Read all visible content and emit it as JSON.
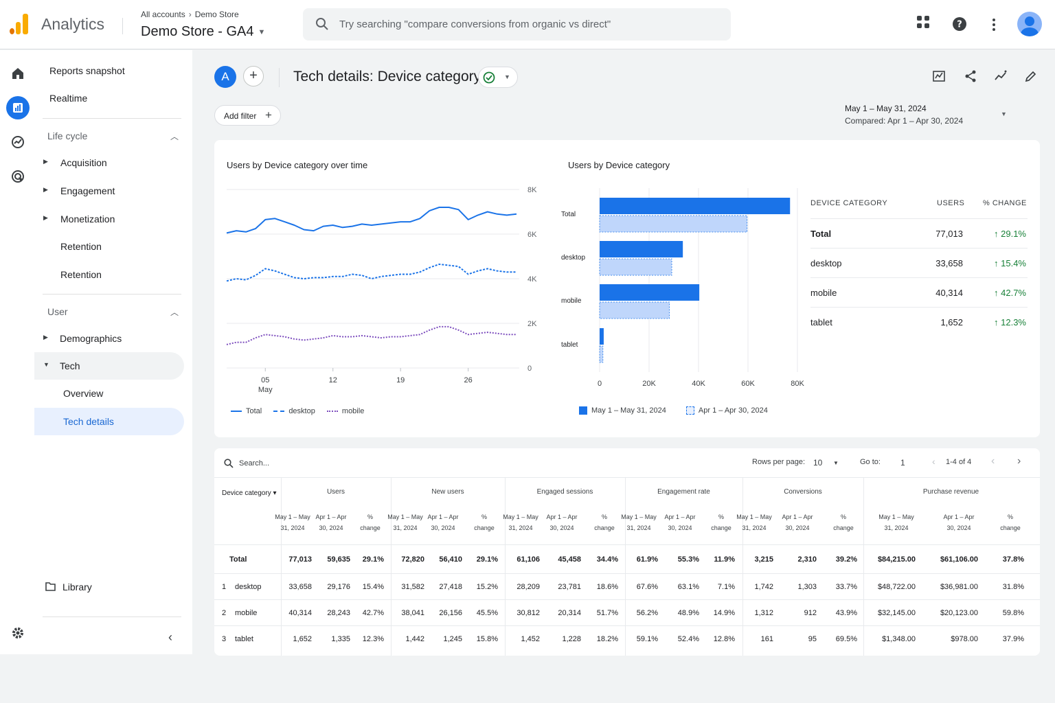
{
  "header": {
    "app_name": "Analytics",
    "breadcrumb_all": "All accounts",
    "breadcrumb_store": "Demo Store",
    "property": "Demo Store - GA4",
    "search_placeholder": "Try searching \"compare conversions from organic vs direct\""
  },
  "sidebar": {
    "reports_snapshot": "Reports snapshot",
    "realtime": "Realtime",
    "lifecycle": "Life cycle",
    "acquisition": "Acquisition",
    "engagement": "Engagement",
    "monetization": "Monetization",
    "retention1": "Retention",
    "retention2": "Retention",
    "user": "User",
    "demographics": "Demographics",
    "tech": "Tech",
    "overview": "Overview",
    "tech_details": "Tech details",
    "library": "Library"
  },
  "page": {
    "comparison_avatar": "A",
    "title": "Tech details: Device category",
    "add_filter": "Add filter",
    "date_range": "May 1 – May 31, 2024",
    "compared": "Compared: Apr 1 – Apr 30, 2024"
  },
  "line_chart": {
    "title": "Users by Device category over time",
    "x_ticks": [
      "05",
      "12",
      "19",
      "26"
    ],
    "x_sub": "May",
    "y_ticks": [
      "8K",
      "6K",
      "4K",
      "2K",
      "0"
    ],
    "legend": [
      "Total",
      "desktop",
      "mobile"
    ]
  },
  "bar_chart": {
    "title": "Users by Device category",
    "categories": [
      "Total",
      "desktop",
      "mobile",
      "tablet"
    ],
    "x_ticks": [
      "0",
      "20K",
      "40K",
      "60K",
      "80K"
    ],
    "legend_current": "May 1 – May 31, 2024",
    "legend_previous": "Apr 1 – Apr 30, 2024"
  },
  "summary": {
    "headers": [
      "DEVICE CATEGORY",
      "USERS",
      "% CHANGE"
    ],
    "rows": [
      {
        "name": "Total",
        "users": "77,013",
        "change": "29.1%"
      },
      {
        "name": "desktop",
        "users": "33,658",
        "change": "15.4%"
      },
      {
        "name": "mobile",
        "users": "40,314",
        "change": "42.7%"
      },
      {
        "name": "tablet",
        "users": "1,652",
        "change": "12.3%"
      }
    ]
  },
  "table": {
    "search_placeholder": "Search...",
    "rows_per_page_label": "Rows per page:",
    "rows_per_page": "10",
    "goto_label": "Go to:",
    "goto": "1",
    "range": "1-4 of 4",
    "dim_header": "Device category",
    "groups": [
      "Users",
      "New users",
      "Engaged sessions",
      "Engagement rate",
      "Conversions",
      "Purchase revenue"
    ],
    "sub_cur": "May 1 – May 31, 2024",
    "sub_prev": "Apr 1 – Apr 30, 2024",
    "sub_chg": "% change",
    "rows": [
      {
        "idx": "",
        "name": "Total",
        "vals": [
          "77,013",
          "59,635",
          "29.1%",
          "72,820",
          "56,410",
          "29.1%",
          "61,106",
          "45,458",
          "34.4%",
          "61.9%",
          "55.3%",
          "11.9%",
          "3,215",
          "2,310",
          "39.2%",
          "$84,215.00",
          "$61,106.00",
          "37.8%"
        ]
      },
      {
        "idx": "1",
        "name": "desktop",
        "vals": [
          "33,658",
          "29,176",
          "15.4%",
          "31,582",
          "27,418",
          "15.2%",
          "28,209",
          "23,781",
          "18.6%",
          "67.6%",
          "63.1%",
          "7.1%",
          "1,742",
          "1,303",
          "33.7%",
          "$48,722.00",
          "$36,981.00",
          "31.8%"
        ]
      },
      {
        "idx": "2",
        "name": "mobile",
        "vals": [
          "40,314",
          "28,243",
          "42.7%",
          "38,041",
          "26,156",
          "45.5%",
          "30,812",
          "20,314",
          "51.7%",
          "56.2%",
          "48.9%",
          "14.9%",
          "1,312",
          "912",
          "43.9%",
          "$32,145.00",
          "$20,123.00",
          "59.8%"
        ]
      },
      {
        "idx": "3",
        "name": "tablet",
        "vals": [
          "1,652",
          "1,335",
          "12.3%",
          "1,442",
          "1,245",
          "15.8%",
          "1,452",
          "1,228",
          "18.2%",
          "59.1%",
          "52.4%",
          "12.8%",
          "161",
          "95",
          "69.5%",
          "$1,348.00",
          "$978.00",
          "37.9%"
        ]
      }
    ]
  },
  "chart_data": [
    {
      "type": "line",
      "title": "Users by Device category over time",
      "x": [
        "May 1",
        "May 2",
        "May 3",
        "May 4",
        "May 5",
        "May 6",
        "May 7",
        "May 8",
        "May 9",
        "May 10",
        "May 11",
        "May 12",
        "May 13",
        "May 14",
        "May 15",
        "May 16",
        "May 17",
        "May 18",
        "May 19",
        "May 20",
        "May 21",
        "May 22",
        "May 23",
        "May 24",
        "May 25",
        "May 26",
        "May 27",
        "May 28",
        "May 29",
        "May 30",
        "May 31"
      ],
      "ylim": [
        0,
        8000
      ],
      "series": [
        {
          "name": "Total",
          "color": "#1a73e8",
          "values": [
            6050,
            6150,
            6100,
            6250,
            6650,
            6700,
            6550,
            6400,
            6200,
            6150,
            6350,
            6400,
            6300,
            6350,
            6450,
            6400,
            6450,
            6500,
            6550,
            6550,
            6700,
            7050,
            7200,
            7200,
            7100,
            6650,
            6850,
            7000,
            6900,
            6850,
            6900
          ]
        },
        {
          "name": "desktop",
          "color": "#1a73e8",
          "values": [
            3900,
            4000,
            3950,
            4150,
            4450,
            4350,
            4200,
            4050,
            4000,
            4050,
            4050,
            4100,
            4100,
            4200,
            4150,
            4000,
            4100,
            4150,
            4200,
            4200,
            4300,
            4500,
            4650,
            4600,
            4550,
            4200,
            4350,
            4450,
            4350,
            4300,
            4300
          ]
        },
        {
          "name": "mobile",
          "color": "#7b4bbd",
          "values": [
            1050,
            1150,
            1150,
            1350,
            1500,
            1450,
            1400,
            1300,
            1250,
            1300,
            1350,
            1450,
            1400,
            1400,
            1450,
            1400,
            1350,
            1400,
            1400,
            1450,
            1500,
            1700,
            1850,
            1850,
            1700,
            1500,
            1550,
            1600,
            1550,
            1500,
            1500
          ]
        }
      ]
    },
    {
      "type": "bar",
      "title": "Users by Device category",
      "categories": [
        "Total",
        "desktop",
        "mobile",
        "tablet"
      ],
      "xlim": [
        0,
        80000
      ],
      "series": [
        {
          "name": "May 1 – May 31, 2024",
          "color": "#1a73e8",
          "values": [
            77013,
            33658,
            40314,
            1652
          ]
        },
        {
          "name": "Apr 1 – Apr 30, 2024",
          "color": "#aecbfa",
          "values": [
            59635,
            29176,
            28243,
            1335
          ]
        }
      ]
    }
  ]
}
